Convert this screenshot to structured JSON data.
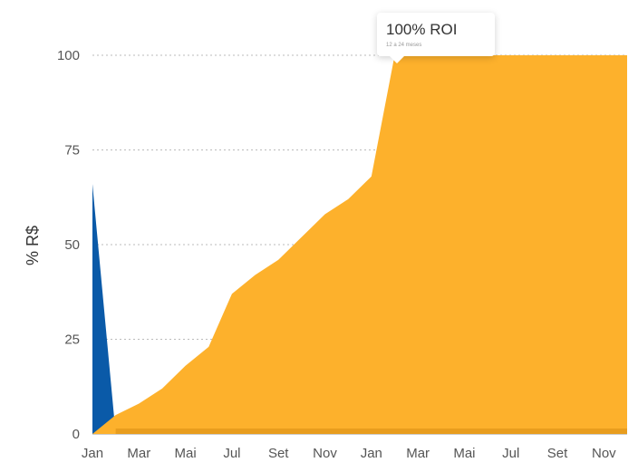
{
  "chart_data": {
    "type": "area",
    "ylabel": "% R$",
    "xlabel": "",
    "ylim": [
      0,
      100
    ],
    "yticks": [
      0,
      25,
      50,
      75,
      100
    ],
    "grid": "horizontal-dotted",
    "x_tick_labels": [
      "Jan",
      "Mar",
      "Mai",
      "Jul",
      "Set",
      "Nov",
      "Jan",
      "Mar",
      "Mai",
      "Jul",
      "Set",
      "Nov"
    ],
    "series": [
      {
        "color": "#0A5AA8",
        "values": [
          66,
          0
        ]
      },
      {
        "color": "#FDB12C",
        "values": [
          0,
          5,
          8,
          12,
          18,
          23,
          37,
          42,
          46,
          52,
          58,
          62,
          68,
          100,
          100,
          100,
          100,
          100,
          100,
          100,
          100,
          100,
          100,
          100
        ]
      }
    ],
    "annotation": {
      "title": "100% ROI",
      "subtitle": "12 a 24 meses"
    }
  }
}
